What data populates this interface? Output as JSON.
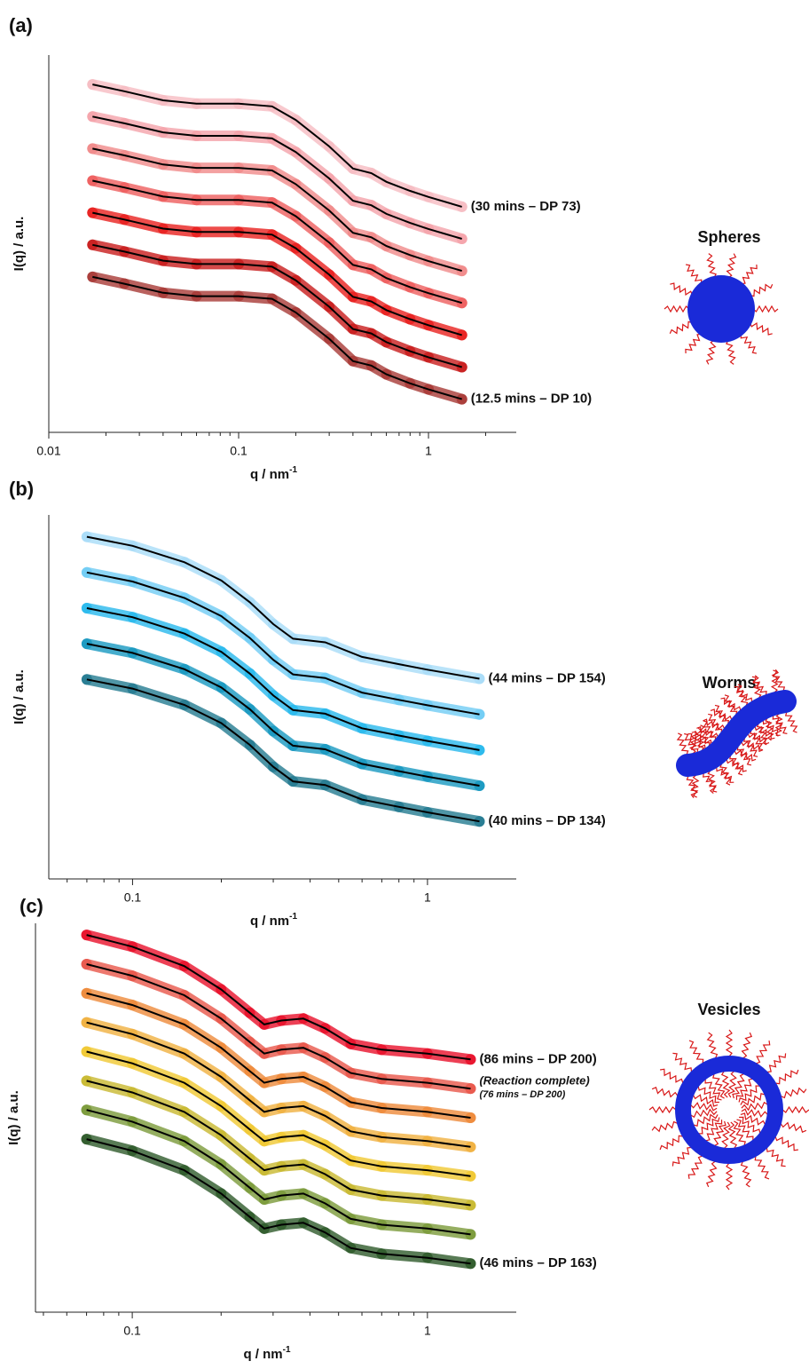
{
  "chart_data": [
    {
      "type": "line",
      "label": "(a)",
      "xlabel": "q / nm",
      "xlabel_sup": "-1",
      "ylabel": "I(q) / a.u.",
      "xscale": "log",
      "structure": "Spheres",
      "xlim": [
        0.01,
        2.9
      ],
      "xticks": [
        0.01,
        0.1,
        1
      ],
      "ylim": [
        0,
        100
      ],
      "x": [
        0.017,
        0.025,
        0.04,
        0.06,
        0.1,
        0.15,
        0.2,
        0.3,
        0.4,
        0.5,
        0.6,
        0.8,
        1.0,
        1.5
      ],
      "series": [
        {
          "name": "(30 mins – DP 73)",
          "color": "#f6bcc2",
          "values": [
            92.2,
            90.4,
            88.0,
            87.1,
            87.1,
            86.4,
            82.8,
            75.8,
            69.9,
            68.7,
            66.4,
            64.0,
            62.4,
            59.8
          ]
        },
        {
          "color": "#f4a3aa",
          "values": [
            83.7,
            81.9,
            79.5,
            78.6,
            78.6,
            77.9,
            74.3,
            67.3,
            61.4,
            60.2,
            57.9,
            55.5,
            53.9,
            51.3
          ]
        },
        {
          "color": "#f08a8a",
          "values": [
            75.2,
            73.4,
            71.0,
            70.1,
            70.1,
            69.4,
            65.8,
            58.8,
            52.9,
            51.7,
            49.4,
            47.0,
            45.4,
            42.8
          ]
        },
        {
          "color": "#ee5e5e",
          "values": [
            66.7,
            64.9,
            62.5,
            61.6,
            61.6,
            60.9,
            57.3,
            50.3,
            44.4,
            43.2,
            40.9,
            38.5,
            36.9,
            34.3
          ]
        },
        {
          "color": "#e8201e",
          "values": [
            58.2,
            56.4,
            54.0,
            53.1,
            53.1,
            52.4,
            48.8,
            41.8,
            35.9,
            34.7,
            32.4,
            30.0,
            28.4,
            25.8
          ]
        },
        {
          "color": "#c81c1c",
          "values": [
            49.7,
            47.9,
            45.5,
            44.6,
            44.6,
            43.9,
            40.3,
            33.3,
            27.4,
            26.2,
            23.9,
            21.5,
            19.9,
            17.3
          ]
        },
        {
          "name": "(12.5 mins – DP 10)",
          "color": "#a83a36",
          "values": [
            41.2,
            39.4,
            37.0,
            36.1,
            36.1,
            35.4,
            31.8,
            24.8,
            18.9,
            17.7,
            15.4,
            13.0,
            11.4,
            8.8
          ]
        }
      ]
    },
    {
      "type": "line",
      "label": "(b)",
      "xlabel": "q / nm",
      "xlabel_sup": "-1",
      "ylabel": "I(q) / a.u.",
      "xscale": "log",
      "structure": "Worms",
      "xlim": [
        0.052,
        2.0
      ],
      "xticks": [
        0.1,
        1
      ],
      "ylim": [
        0,
        100
      ],
      "x": [
        0.07,
        0.1,
        0.15,
        0.2,
        0.25,
        0.3,
        0.35,
        0.45,
        0.6,
        0.8,
        1.0,
        1.5
      ],
      "series": [
        {
          "name": "(44 mins – DP 154)",
          "color": "#a8dcf8",
          "values": [
            94,
            91.5,
            87,
            82,
            76,
            70,
            66,
            65,
            61,
            59,
            57.5,
            55
          ]
        },
        {
          "color": "#70ccf4",
          "values": [
            84.2,
            81.7,
            77.2,
            72.2,
            66.2,
            60.2,
            56.2,
            55.2,
            51.2,
            49.2,
            47.7,
            45.2
          ]
        },
        {
          "color": "#28b8ec",
          "values": [
            74.4,
            71.9,
            67.4,
            62.4,
            56.4,
            50.4,
            46.4,
            45.4,
            41.4,
            39.4,
            37.9,
            35.4
          ]
        },
        {
          "color": "#1898c0",
          "values": [
            64.6,
            62.1,
            57.6,
            52.6,
            46.6,
            40.6,
            36.6,
            35.6,
            31.6,
            29.6,
            28.1,
            25.6
          ]
        },
        {
          "name": "(40 mins – DP 134)",
          "color": "#237a90",
          "values": [
            54.8,
            52.3,
            47.8,
            42.8,
            36.8,
            30.8,
            26.8,
            25.8,
            21.8,
            19.8,
            18.3,
            15.8
          ]
        }
      ]
    },
    {
      "type": "line",
      "label": "(c)",
      "xlabel": "q / nm",
      "xlabel_sup": "-1",
      "ylabel": "I(q) / a.u.",
      "xscale": "log",
      "structure": "Vesicles",
      "xlim": [
        0.047,
        2.0
      ],
      "xticks": [
        0.1,
        1
      ],
      "ylim": [
        0,
        100
      ],
      "x": [
        0.07,
        0.1,
        0.15,
        0.2,
        0.25,
        0.28,
        0.32,
        0.38,
        0.45,
        0.55,
        0.7,
        1.0,
        1.4
      ],
      "series": [
        {
          "name": "(86 mins – DP 200)",
          "color": "#e8102a",
          "values": [
            97,
            94,
            89,
            83,
            77,
            74,
            75,
            75.5,
            73,
            69,
            67.5,
            66.5,
            65
          ]
        },
        {
          "name": "(Reaction complete)",
          "sublabel": "(76 mins – DP 200)",
          "color": "#e8564a",
          "values": [
            89.5,
            86.5,
            81.5,
            75.5,
            69.5,
            66.5,
            67.5,
            68,
            65.5,
            61.5,
            60,
            59,
            57.5
          ]
        },
        {
          "color": "#ee8a3a",
          "values": [
            82,
            79,
            74,
            68,
            62,
            59,
            60,
            60.5,
            58,
            54,
            52.5,
            51.5,
            50
          ]
        },
        {
          "color": "#f0b040",
          "values": [
            74.5,
            71.5,
            66.5,
            60.5,
            54.5,
            51.5,
            52.5,
            53,
            50.5,
            46.5,
            45,
            44,
            42.5
          ]
        },
        {
          "color": "#f0c832",
          "values": [
            67,
            64,
            59,
            53,
            47,
            44,
            45,
            45.5,
            43,
            39,
            37.5,
            36.5,
            35
          ]
        },
        {
          "color": "#c8b830",
          "values": [
            59.5,
            56.5,
            51.5,
            45.5,
            39.5,
            36.5,
            37.5,
            38,
            35.5,
            31.5,
            30,
            29,
            27.5
          ]
        },
        {
          "color": "#7a9a3a",
          "values": [
            52,
            49,
            44,
            38,
            32,
            29,
            30,
            30.5,
            28,
            24,
            22.5,
            21.5,
            20
          ]
        },
        {
          "name": "(46 mins – DP 163)",
          "color": "#2e5a2a",
          "values": [
            44.5,
            41.5,
            36.5,
            30.5,
            24.5,
            21.5,
            22.5,
            23,
            20.5,
            16.5,
            15,
            14,
            12.5
          ]
        }
      ]
    }
  ]
}
